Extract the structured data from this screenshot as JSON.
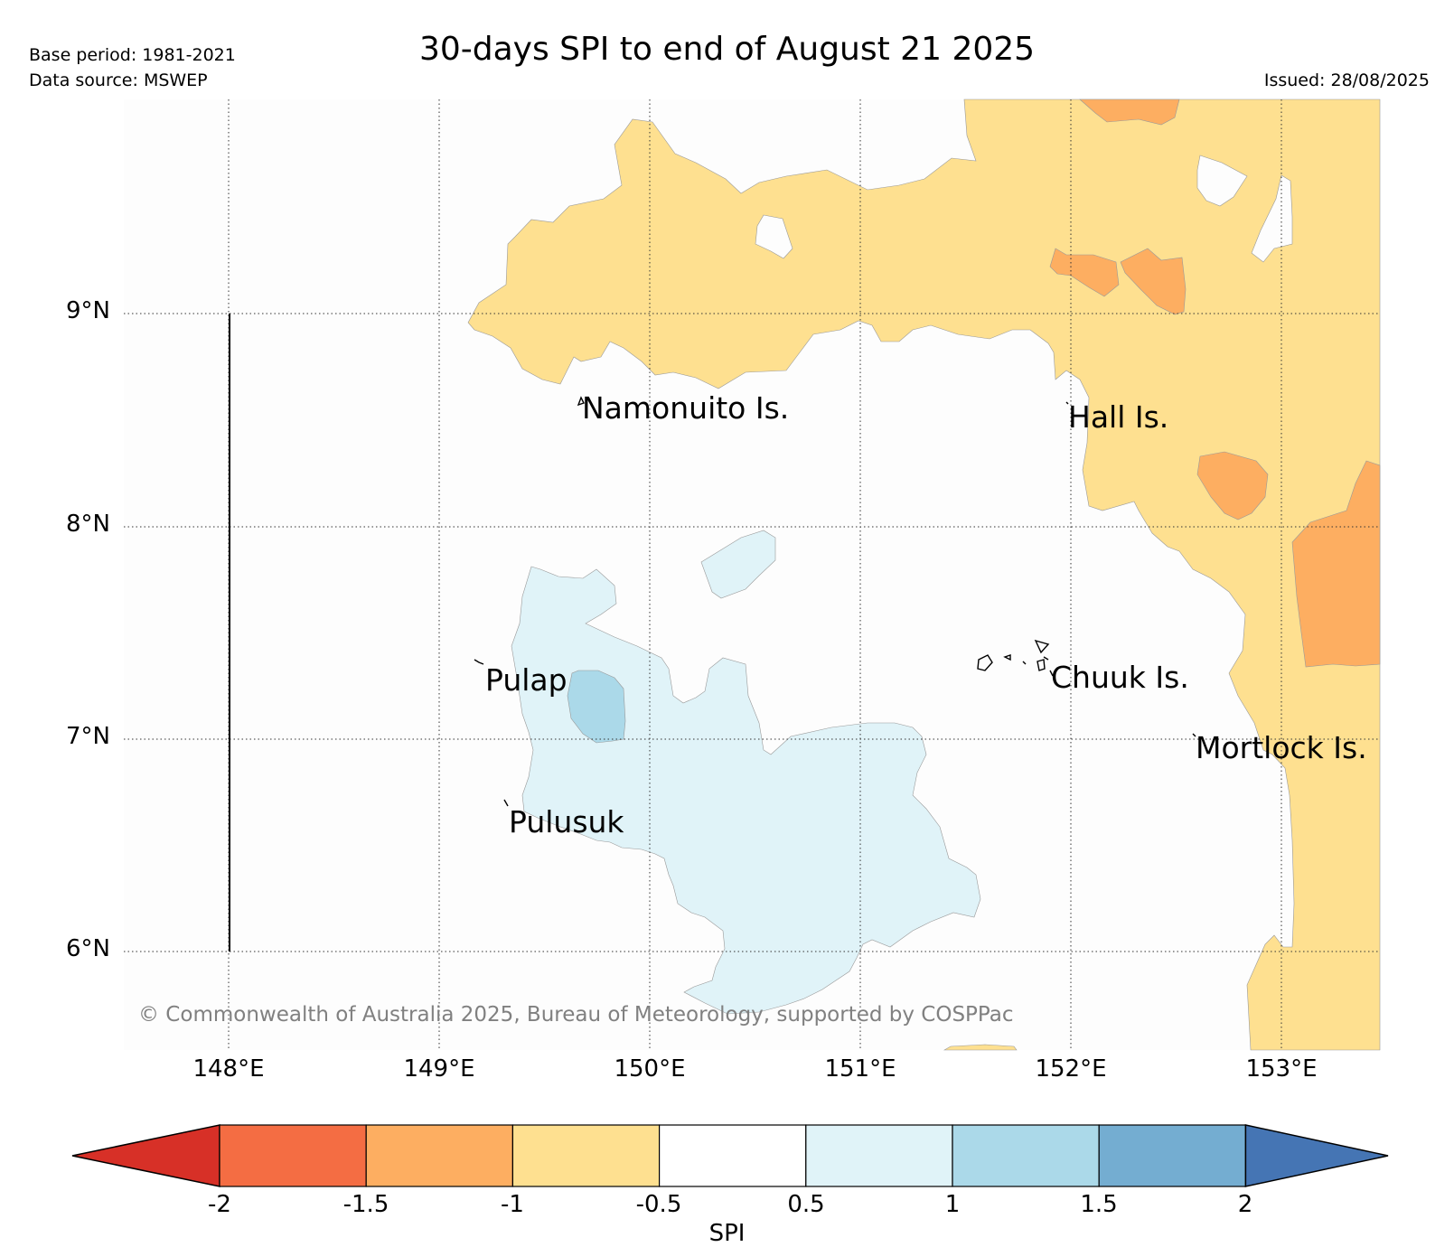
{
  "header": {
    "title": "30-days SPI to end of August 21 2025",
    "base_period": "Base period: 1981-2021",
    "data_source": "Data source: MSWEP",
    "issued": "Issued: 28/08/2025"
  },
  "map": {
    "lat_labels": [
      "9°N",
      "8°N",
      "7°N",
      "6°N"
    ],
    "lon_labels": [
      "148°E",
      "149°E",
      "150°E",
      "151°E",
      "152°E",
      "153°E"
    ],
    "places": [
      "Namonuito Is.",
      "Hall Is.",
      "Pulap",
      "Chuuk Is.",
      "Mortlock Is.",
      "Pulusuk"
    ],
    "copyright": "© Commonwealth of Australia 2025, Bureau of Meteorology, supported by COSPPac"
  },
  "colorbar": {
    "label": "SPI",
    "ticks": [
      "-2",
      "-1.5",
      "-1",
      "-0.5",
      "0.5",
      "1",
      "1.5",
      "2"
    ],
    "colors": [
      "#d73027",
      "#f46d43",
      "#fdae61",
      "#fee090",
      "#ffffff",
      "#e0f3f8",
      "#abd9e9",
      "#74add1",
      "#4575b4"
    ]
  }
}
